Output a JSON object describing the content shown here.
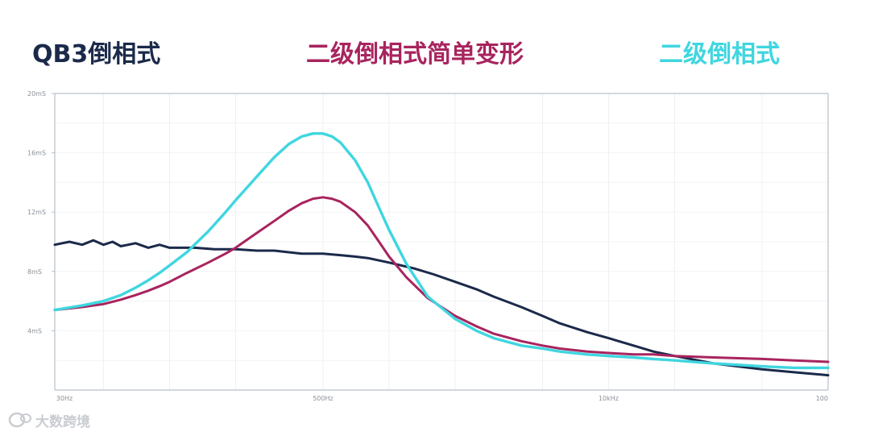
{
  "chart_data": {
    "type": "line",
    "title": "",
    "xlabel": "",
    "ylabel": "",
    "x_scale": "log",
    "xlim": [
      30,
      100000
    ],
    "ylim": [
      0,
      20
    ],
    "x_ticks": [
      {
        "value": 30,
        "label": "30Hz"
      },
      {
        "value": 500,
        "label": "500Hz"
      },
      {
        "value": 10000,
        "label": "10kHz"
      },
      {
        "value": 100000,
        "label": "100"
      }
    ],
    "y_ticks": [
      {
        "value": 4,
        "label": "4mS"
      },
      {
        "value": 8,
        "label": "8mS"
      },
      {
        "value": 12,
        "label": "12mS"
      },
      {
        "value": 16,
        "label": "16mS"
      },
      {
        "value": 20,
        "label": "20mS"
      }
    ],
    "grid": true,
    "legend_position": "top",
    "series": [
      {
        "name": "QB3倒相式",
        "color": "#1b2a4a",
        "points": [
          [
            30,
            9.8
          ],
          [
            35,
            10.0
          ],
          [
            40,
            9.8
          ],
          [
            45,
            10.1
          ],
          [
            50,
            9.8
          ],
          [
            55,
            10.0
          ],
          [
            60,
            9.7
          ],
          [
            70,
            9.9
          ],
          [
            80,
            9.6
          ],
          [
            90,
            9.8
          ],
          [
            100,
            9.6
          ],
          [
            130,
            9.6
          ],
          [
            160,
            9.5
          ],
          [
            200,
            9.5
          ],
          [
            250,
            9.4
          ],
          [
            300,
            9.4
          ],
          [
            400,
            9.2
          ],
          [
            500,
            9.2
          ],
          [
            600,
            9.1
          ],
          [
            700,
            9.0
          ],
          [
            800,
            8.9
          ],
          [
            1000,
            8.6
          ],
          [
            1300,
            8.2
          ],
          [
            1600,
            7.8
          ],
          [
            2000,
            7.3
          ],
          [
            2500,
            6.8
          ],
          [
            3000,
            6.3
          ],
          [
            4000,
            5.6
          ],
          [
            5000,
            5.0
          ],
          [
            6000,
            4.5
          ],
          [
            8000,
            3.9
          ],
          [
            10000,
            3.5
          ],
          [
            13000,
            3.0
          ],
          [
            16000,
            2.6
          ],
          [
            20000,
            2.3
          ],
          [
            30000,
            1.8
          ],
          [
            50000,
            1.4
          ],
          [
            70000,
            1.2
          ],
          [
            100000,
            1.0
          ]
        ]
      },
      {
        "name": "二级倒相式简单变形",
        "color": "#a8245e",
        "points": [
          [
            30,
            5.4
          ],
          [
            40,
            5.6
          ],
          [
            50,
            5.8
          ],
          [
            60,
            6.1
          ],
          [
            70,
            6.4
          ],
          [
            80,
            6.7
          ],
          [
            90,
            7.0
          ],
          [
            100,
            7.3
          ],
          [
            120,
            7.9
          ],
          [
            150,
            8.6
          ],
          [
            180,
            9.2
          ],
          [
            200,
            9.6
          ],
          [
            250,
            10.6
          ],
          [
            300,
            11.4
          ],
          [
            350,
            12.1
          ],
          [
            400,
            12.6
          ],
          [
            450,
            12.9
          ],
          [
            500,
            13.0
          ],
          [
            550,
            12.9
          ],
          [
            600,
            12.7
          ],
          [
            700,
            12.0
          ],
          [
            800,
            11.1
          ],
          [
            900,
            10.0
          ],
          [
            1000,
            9.0
          ],
          [
            1200,
            7.6
          ],
          [
            1500,
            6.2
          ],
          [
            2000,
            5.0
          ],
          [
            2500,
            4.3
          ],
          [
            3000,
            3.8
          ],
          [
            4000,
            3.3
          ],
          [
            5000,
            3.0
          ],
          [
            6000,
            2.8
          ],
          [
            8000,
            2.6
          ],
          [
            10000,
            2.5
          ],
          [
            13000,
            2.4
          ],
          [
            16000,
            2.4
          ],
          [
            20000,
            2.3
          ],
          [
            30000,
            2.2
          ],
          [
            50000,
            2.1
          ],
          [
            70000,
            2.0
          ],
          [
            100000,
            1.9
          ]
        ]
      },
      {
        "name": "二级倒相式",
        "color": "#3fd6e0",
        "points": [
          [
            30,
            5.4
          ],
          [
            40,
            5.7
          ],
          [
            50,
            6.0
          ],
          [
            60,
            6.4
          ],
          [
            70,
            6.9
          ],
          [
            80,
            7.4
          ],
          [
            90,
            7.9
          ],
          [
            100,
            8.4
          ],
          [
            120,
            9.3
          ],
          [
            150,
            10.7
          ],
          [
            180,
            12.0
          ],
          [
            200,
            12.8
          ],
          [
            250,
            14.4
          ],
          [
            300,
            15.7
          ],
          [
            350,
            16.6
          ],
          [
            400,
            17.1
          ],
          [
            450,
            17.3
          ],
          [
            500,
            17.3
          ],
          [
            550,
            17.1
          ],
          [
            600,
            16.7
          ],
          [
            700,
            15.5
          ],
          [
            800,
            14.0
          ],
          [
            900,
            12.3
          ],
          [
            1000,
            10.8
          ],
          [
            1200,
            8.5
          ],
          [
            1500,
            6.3
          ],
          [
            2000,
            4.8
          ],
          [
            2500,
            4.0
          ],
          [
            3000,
            3.5
          ],
          [
            4000,
            3.0
          ],
          [
            5000,
            2.8
          ],
          [
            6000,
            2.6
          ],
          [
            8000,
            2.4
          ],
          [
            10000,
            2.3
          ],
          [
            13000,
            2.2
          ],
          [
            16000,
            2.1
          ],
          [
            20000,
            2.0
          ],
          [
            30000,
            1.8
          ],
          [
            50000,
            1.6
          ],
          [
            70000,
            1.5
          ],
          [
            100000,
            1.5
          ]
        ]
      }
    ]
  },
  "watermark": {
    "icon": "chat-bubble-icon",
    "text": "大数跨境"
  }
}
